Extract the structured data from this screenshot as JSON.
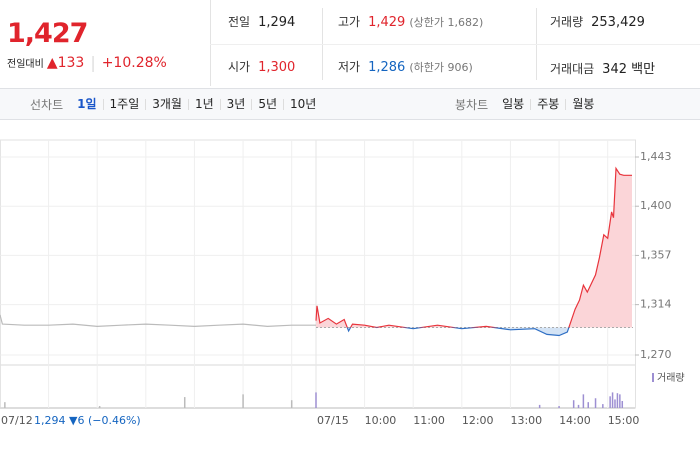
{
  "quote": {
    "price": "1,427",
    "change_label": "전일대비",
    "change": "▲133",
    "change_pct": "+10.28%",
    "color": "#e0242c"
  },
  "summary": [
    {
      "label": "전일",
      "value": "1,294",
      "color": "#222222"
    },
    {
      "label": "고가",
      "value": "1,429",
      "note": "(상한가 1,682)",
      "color": "#e0242c"
    },
    {
      "label": "거래량",
      "value": "253,429",
      "color": "#222222"
    },
    {
      "label": "시가",
      "value": "1,300",
      "color": "#e0242c"
    },
    {
      "label": "저가",
      "value": "1,286",
      "note": "(하한가 906)",
      "color": "#1565c0"
    },
    {
      "label": "거래대금",
      "value": "342 백만",
      "color": "#222222"
    }
  ],
  "tabs": {
    "line_label": "선차트",
    "line": [
      "1일",
      "1주일",
      "3개월",
      "1년",
      "3년",
      "5년",
      "10년"
    ],
    "active": 0,
    "candle_label": "봉차트",
    "candle": [
      "일봉",
      "주봉",
      "월봉"
    ]
  },
  "chart": {
    "type": "line",
    "ylim": [
      1270,
      1443
    ],
    "yticks": [
      {
        "value": 1443,
        "label": "1,443"
      },
      {
        "value": 1400,
        "label": "1,400"
      },
      {
        "value": 1357,
        "label": "1,357"
      },
      {
        "value": 1314,
        "label": "1,314"
      },
      {
        "value": 1270,
        "label": "1,270"
      }
    ],
    "xlim": [
      9,
      15.5
    ],
    "xticks": [
      {
        "value": 10,
        "label": "10:00"
      },
      {
        "value": 11,
        "label": "11:00"
      },
      {
        "value": 12,
        "label": "12:00"
      },
      {
        "value": 13,
        "label": "13:00"
      },
      {
        "value": 14,
        "label": "14:00"
      },
      {
        "value": 15,
        "label": "15:00"
      }
    ],
    "dates": [
      "07/12",
      "07/15"
    ],
    "baseline": 1294,
    "grid": true,
    "series": [
      {
        "color": "#bbbbbb",
        "x": [
          9,
          9.05,
          9.5,
          10,
          10.5,
          11,
          11.5,
          12,
          12.5,
          13,
          13.5,
          14,
          14.5,
          15,
          15.5
        ],
        "values": [
          1305,
          1297,
          1296,
          1296,
          1297,
          1295,
          1296,
          1297,
          1296,
          1295,
          1296,
          1297,
          1295,
          1296,
          1296
        ]
      },
      {
        "color_up": "#e8343c",
        "color_down": "#2f6fc4",
        "fill_up": "#fbd5d8",
        "fill_down": "#d3e3f5",
        "x": [
          9,
          9.02,
          9.08,
          9.25,
          9.42,
          9.58,
          9.67,
          9.75,
          10,
          10.25,
          10.5,
          11,
          11.5,
          12,
          12.5,
          13,
          13.5,
          13.75,
          14,
          14.17,
          14.25,
          14.33,
          14.42,
          14.5,
          14.58,
          14.75,
          14.83,
          14.92,
          15,
          15.08,
          15.12,
          15.17,
          15.25,
          15.33,
          15.5
        ],
        "values": [
          1300,
          1313,
          1298,
          1302,
          1297,
          1301,
          1291,
          1297,
          1296,
          1294,
          1296,
          1293,
          1296,
          1293,
          1295,
          1292,
          1293,
          1288,
          1287,
          1290,
          1300,
          1310,
          1318,
          1331,
          1325,
          1340,
          1355,
          1375,
          1372,
          1395,
          1390,
          1433,
          1428,
          1427,
          1427
        ]
      }
    ]
  },
  "volume": {
    "label": "거래량",
    "ylim": [
      0,
      100
    ],
    "series": [
      {
        "color": "#bbbbbb",
        "x": [
          9.1,
          11.05,
          12.8,
          14,
          15
        ],
        "values": [
          15,
          5,
          28,
          35,
          20
        ]
      },
      {
        "color": "#9d8fd2",
        "x": [
          9,
          13.6,
          14,
          14.3,
          14.4,
          14.5,
          14.6,
          14.75,
          14.9,
          15.05,
          15.1,
          15.15,
          15.2,
          15.25,
          15.3
        ],
        "values": [
          40,
          8,
          5,
          20,
          8,
          35,
          15,
          25,
          10,
          30,
          40,
          22,
          38,
          35,
          18
        ]
      }
    ]
  },
  "footer": {
    "close": "1,294",
    "change": "▼6",
    "change_pct": "(−0.46%)",
    "color": "#1565c0"
  }
}
